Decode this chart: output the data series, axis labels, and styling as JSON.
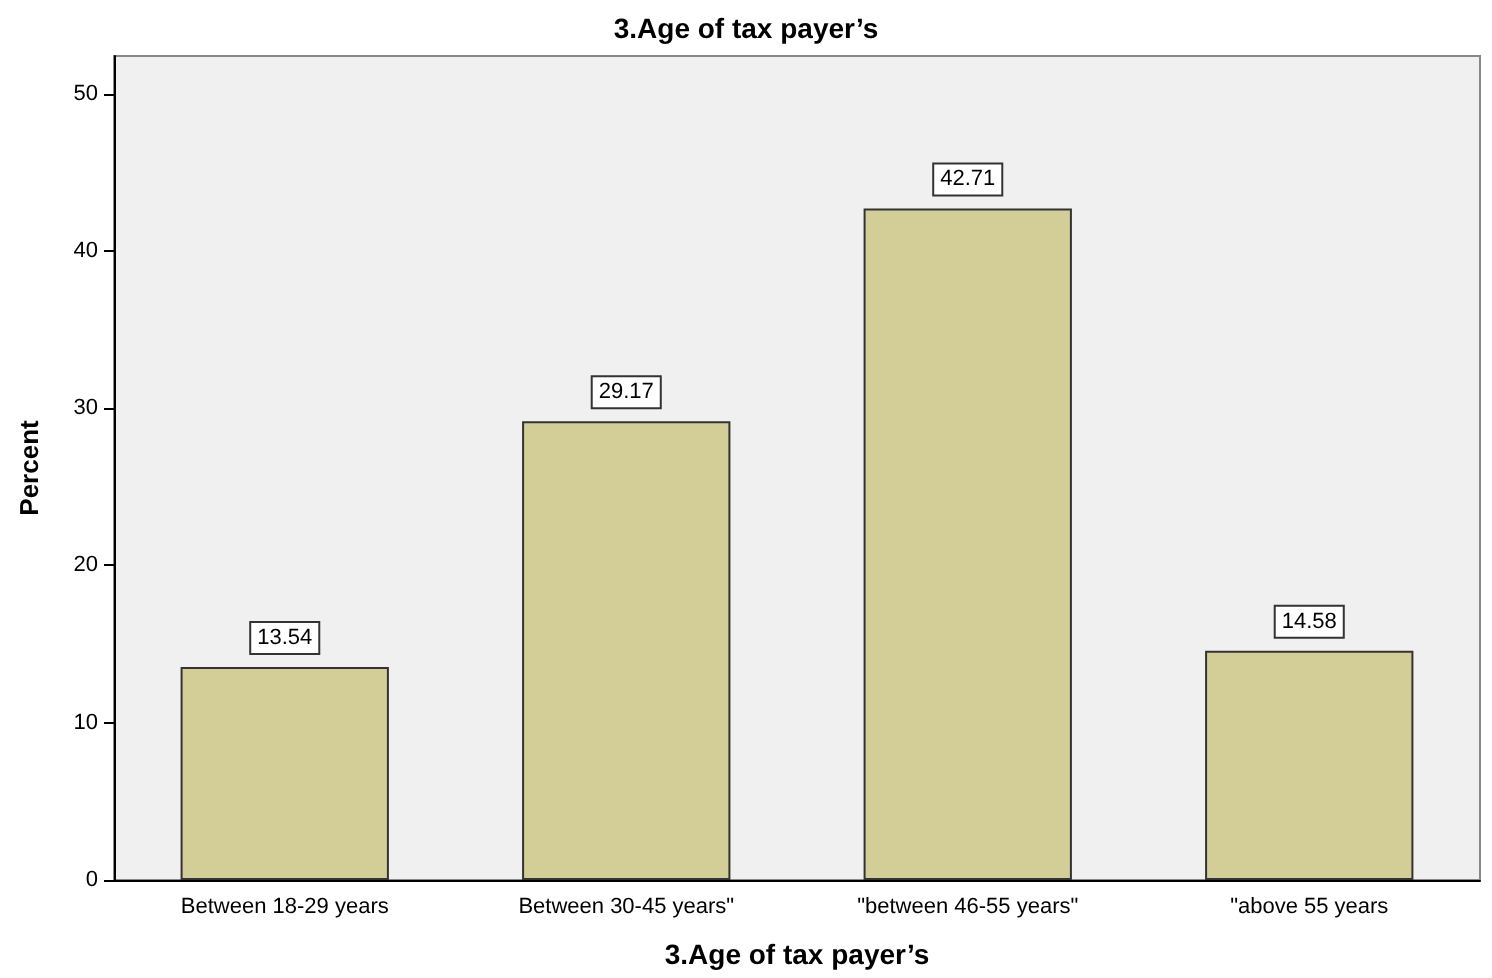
{
  "chart_data": {
    "type": "bar",
    "title": "3.Age of tax payer’s",
    "xlabel": "3.Age of tax payer’s",
    "ylabel": "Percent",
    "categories": [
      "Between 18-29 years",
      "Between 30-45 years\"",
      "\"between 46-55 years\"",
      "\"above 55 years"
    ],
    "values": [
      13.54,
      29.17,
      42.71,
      14.58
    ],
    "color": "#d3ce98",
    "ylim": [
      0,
      52.4
    ],
    "yticks": [
      0,
      10,
      20,
      30,
      40,
      50
    ],
    "grid": false,
    "data_labels": true
  }
}
